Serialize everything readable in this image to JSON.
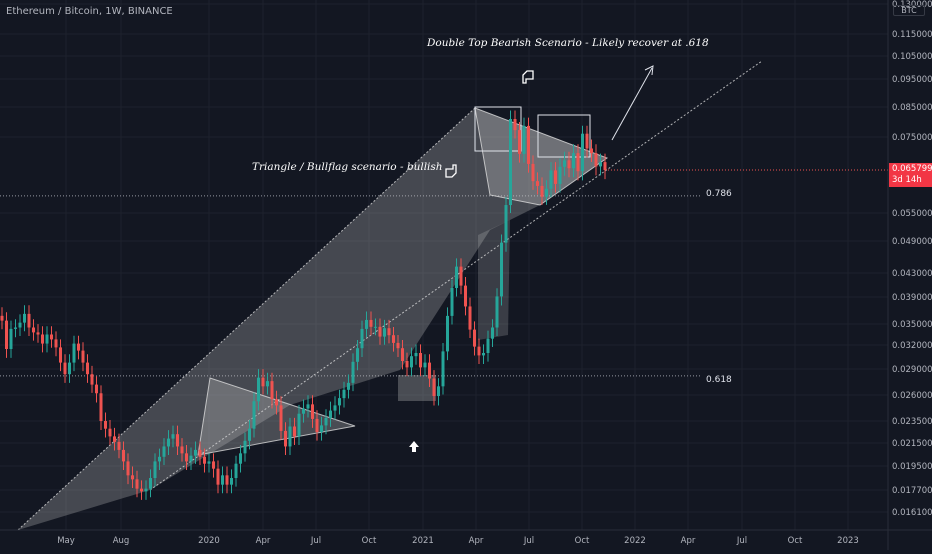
{
  "header": {
    "symbol": "Ethereum / Bitcoin, 1W, BINANCE",
    "currency": "BTC"
  },
  "annotations": {
    "double_top": "Double Top Bearish Scenario - Likely recover at .618",
    "triangle": "Triangle / Bullflag scenario - bullish"
  },
  "levels": {
    "fib_786": "0.786",
    "fib_618": "0.618"
  },
  "last_price": {
    "value": "0.065799",
    "countdown": "3d 14h",
    "color": "#f23645"
  },
  "colors": {
    "background": "#131722",
    "up": "#26a69a",
    "down": "#ef5350",
    "drawing": "#c8c8c8"
  },
  "chart_data": {
    "type": "candlestick",
    "y_axis_ticks": [
      "0.130000",
      "0.115000",
      "0.105000",
      "0.095000",
      "0.085000",
      "0.075000",
      "0.065799",
      "0.055000",
      "0.049000",
      "0.043000",
      "0.039000",
      "0.035000",
      "0.032000",
      "0.029000",
      "0.026000",
      "0.023500",
      "0.021500",
      "0.019500",
      "0.017700",
      "0.016100"
    ],
    "x_axis_ticks": [
      "May",
      "Aug",
      "2020",
      "Apr",
      "Jul",
      "Oct",
      "2021",
      "Apr",
      "Jul",
      "Oct",
      "2022",
      "Apr",
      "Jul",
      "Oct",
      "2023"
    ],
    "fib_levels": [
      {
        "label": "0.786",
        "value": 0.0593
      },
      {
        "label": "0.618",
        "value": 0.0282
      }
    ],
    "last_price": 0.065799,
    "candles_close": [
      0.0355,
      0.0315,
      0.0343,
      0.0345,
      0.0352,
      0.0365,
      0.0345,
      0.0338,
      0.0335,
      0.0322,
      0.0335,
      0.0328,
      0.0317,
      0.0298,
      0.0284,
      0.0298,
      0.0322,
      0.0313,
      0.0298,
      0.0284,
      0.0272,
      0.0262,
      0.0235,
      0.0228,
      0.0221,
      0.0216,
      0.0209,
      0.0199,
      0.0188,
      0.0185,
      0.0178,
      0.0176,
      0.0178,
      0.0186,
      0.0199,
      0.0203,
      0.0212,
      0.0219,
      0.0223,
      0.0212,
      0.0206,
      0.0199,
      0.0204,
      0.0209,
      0.0203,
      0.0197,
      0.0199,
      0.0193,
      0.0181,
      0.0188,
      0.0181,
      0.0186,
      0.0197,
      0.0206,
      0.0217,
      0.0228,
      0.0254,
      0.028,
      0.027,
      0.0276,
      0.0256,
      0.025,
      0.0226,
      0.0212,
      0.023,
      0.0221,
      0.0242,
      0.0247,
      0.0251,
      0.0237,
      0.0225,
      0.0231,
      0.0238,
      0.0245,
      0.025,
      0.0257,
      0.0266,
      0.0274,
      0.0299,
      0.0316,
      0.0343,
      0.0356,
      0.0346,
      0.0346,
      0.0332,
      0.0344,
      0.0334,
      0.0323,
      0.0316,
      0.03,
      0.0292,
      0.0306,
      0.031,
      0.0292,
      0.0298,
      0.0279,
      0.0259,
      0.027,
      0.0312,
      0.0362,
      0.0405,
      0.0442,
      0.0409,
      0.0376,
      0.0342,
      0.0318,
      0.0307,
      0.031,
      0.0329,
      0.0345,
      0.0391,
      0.0487,
      0.057,
      0.081,
      0.0773,
      0.0703,
      0.0787,
      0.0675,
      0.063,
      0.0618,
      0.0591,
      0.0611,
      0.0657,
      0.0623,
      0.0667,
      0.0685,
      0.0663,
      0.0705,
      0.0655,
      0.0761,
      0.0718,
      0.0705,
      0.0668,
      0.068,
      0.0658
    ],
    "annotations": [
      "Double Top Bearish Scenario - Likely recover at .618",
      "Triangle / Bullflag scenario - bullish"
    ]
  }
}
